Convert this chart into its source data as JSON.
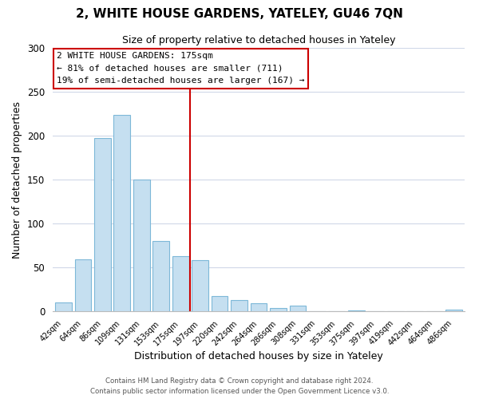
{
  "title": "2, WHITE HOUSE GARDENS, YATELEY, GU46 7QN",
  "subtitle": "Size of property relative to detached houses in Yateley",
  "xlabel": "Distribution of detached houses by size in Yateley",
  "ylabel": "Number of detached properties",
  "bar_labels": [
    "42sqm",
    "64sqm",
    "86sqm",
    "109sqm",
    "131sqm",
    "153sqm",
    "175sqm",
    "197sqm",
    "220sqm",
    "242sqm",
    "264sqm",
    "286sqm",
    "308sqm",
    "331sqm",
    "353sqm",
    "375sqm",
    "397sqm",
    "419sqm",
    "442sqm",
    "464sqm",
    "486sqm"
  ],
  "bar_values": [
    10,
    59,
    197,
    224,
    150,
    80,
    63,
    58,
    17,
    13,
    9,
    4,
    6,
    0,
    0,
    1,
    0,
    0,
    0,
    0,
    2
  ],
  "bar_color": "#c5dff0",
  "bar_edge_color": "#7db8d8",
  "vline_color": "#cc0000",
  "ylim": [
    0,
    300
  ],
  "yticks": [
    0,
    50,
    100,
    150,
    200,
    250,
    300
  ],
  "annotation_title": "2 WHITE HOUSE GARDENS: 175sqm",
  "annotation_line1": "← 81% of detached houses are smaller (711)",
  "annotation_line2": "19% of semi-detached houses are larger (167) →",
  "annotation_box_color": "#ffffff",
  "annotation_box_edge": "#cc0000",
  "footer1": "Contains HM Land Registry data © Crown copyright and database right 2024.",
  "footer2": "Contains public sector information licensed under the Open Government Licence v3.0.",
  "background_color": "#ffffff",
  "grid_color": "#d0d8e8"
}
